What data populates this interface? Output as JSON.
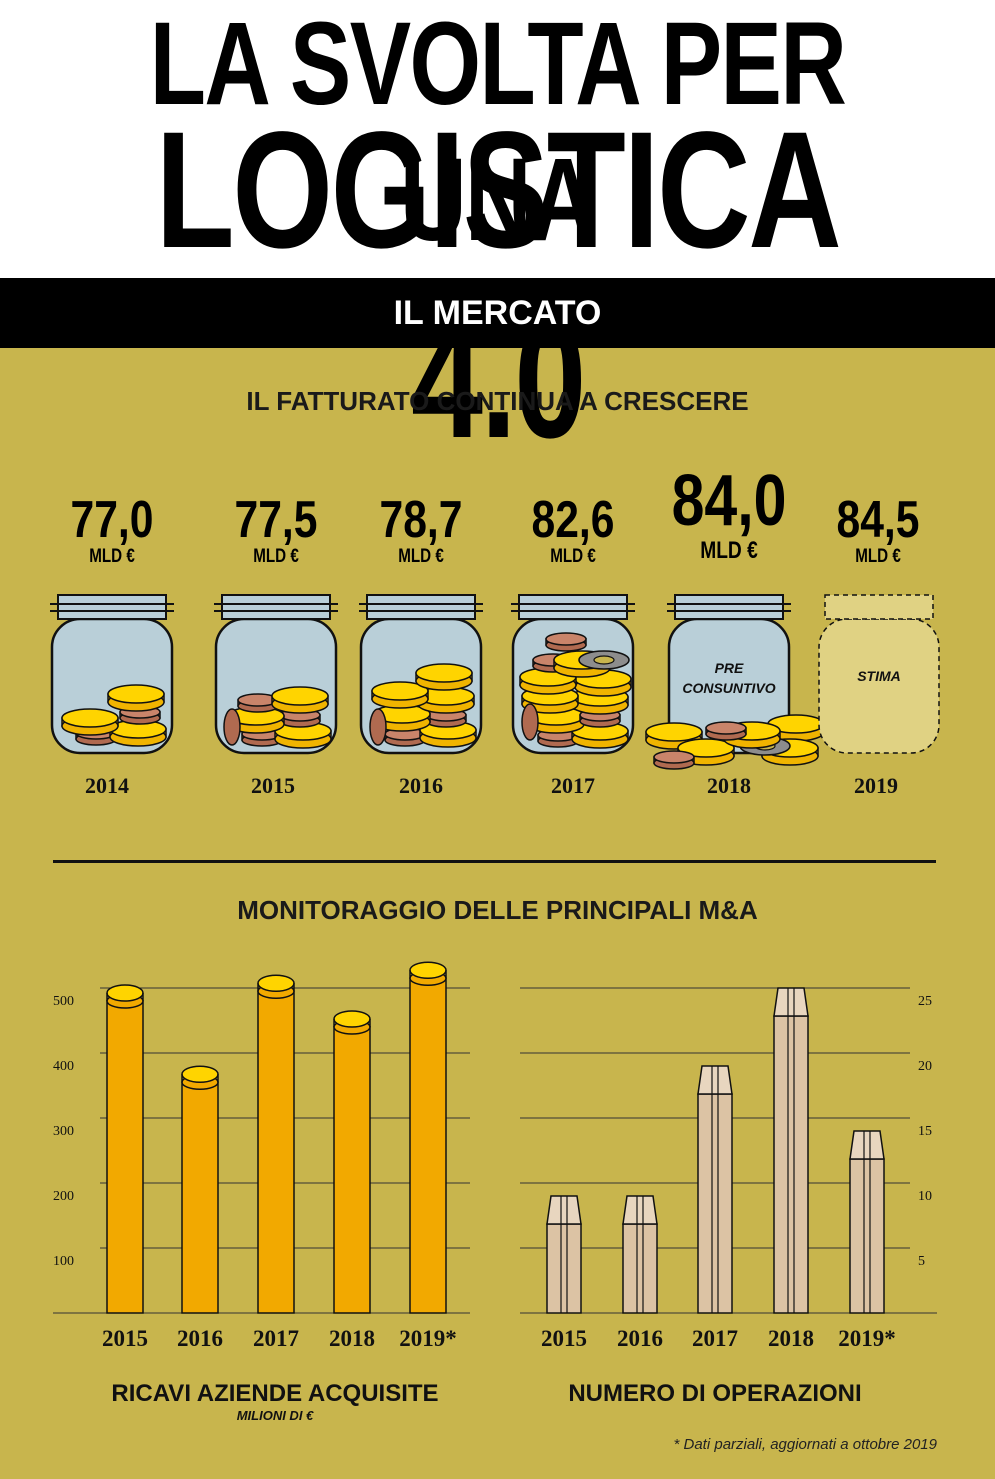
{
  "header": {
    "title_line1": "LA SVOLTA PER UNA",
    "title_line2": "LOGISTICA 4.0",
    "section_band": "IL MERCATO"
  },
  "jars_section": {
    "heading": "IL FATTURATO CONTINUA A CRESCERE",
    "unit": "MLD €",
    "jars": [
      {
        "year": "2014",
        "value": "77,0",
        "label": ""
      },
      {
        "year": "2015",
        "value": "77,5",
        "label": ""
      },
      {
        "year": "2016",
        "value": "78,7",
        "label": ""
      },
      {
        "year": "2017",
        "value": "82,6",
        "label": ""
      },
      {
        "year": "2018",
        "value": "84,0",
        "label_line1": "PRE",
        "label_line2": "CONSUNTIVO"
      },
      {
        "year": "2019",
        "value": "84,5",
        "label": "STIMA"
      }
    ]
  },
  "ma_section": {
    "heading": "MONITORAGGIO DELLE PRINCIPALI M&A",
    "left_chart_title": "RICAVI AZIENDE ACQUISITE",
    "left_chart_subtitle": "MILIONI DI €",
    "right_chart_title": "NUMERO DI OPERAZIONI",
    "footnote": "* Dati parziali, aggiornati a ottobre 2019"
  },
  "chart_data": [
    {
      "type": "bar",
      "title": "IL FATTURATO CONTINUA A CRESCERE",
      "categories": [
        "2014",
        "2015",
        "2016",
        "2017",
        "2018",
        "2019"
      ],
      "values": [
        77.0,
        77.5,
        78.7,
        82.6,
        84.0,
        84.5
      ],
      "ylabel": "MLD €",
      "annotations": {
        "2018": "PRE CONSUNTIVO",
        "2019": "STIMA"
      }
    },
    {
      "type": "bar",
      "title": "RICAVI AZIENDE ACQUISITE",
      "subtitle": "MILIONI DI €",
      "categories": [
        "2015",
        "2016",
        "2017",
        "2018",
        "2019*"
      ],
      "values": [
        480,
        355,
        495,
        440,
        515
      ],
      "yticks": [
        "100",
        "200",
        "300",
        "400",
        "500"
      ],
      "ylim": [
        0,
        500
      ],
      "color": "#f2a900",
      "grid": true
    },
    {
      "type": "bar",
      "title": "NUMERO DI OPERAZIONI",
      "categories": [
        "2015",
        "2016",
        "2017",
        "2018",
        "2019*"
      ],
      "values": [
        9,
        9,
        19,
        25,
        14
      ],
      "yticks": [
        "5",
        "10",
        "15",
        "20",
        "25"
      ],
      "ylim": [
        0,
        25
      ],
      "color": "#dcc3a4",
      "grid": true
    }
  ]
}
